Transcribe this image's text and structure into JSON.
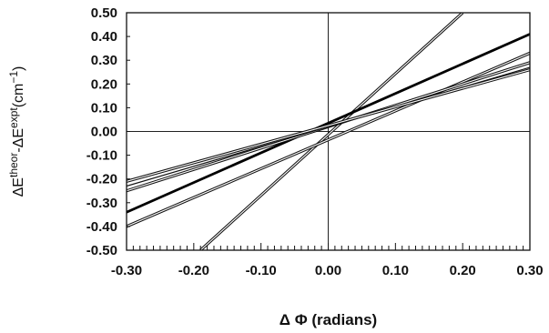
{
  "chart_data": {
    "type": "line",
    "xlabel": "Δ Φ (radians)",
    "ylabel": {
      "base1": "ΔE",
      "sup1": "theor",
      "mid": "-ΔE",
      "sup2": "expt",
      "unit": "(cm",
      "unit_sup": "−1",
      "close": ")"
    },
    "xlim": [
      -0.3,
      0.3
    ],
    "ylim": [
      -0.5,
      0.5
    ],
    "x_ticks": [
      -0.3,
      -0.2,
      -0.1,
      0.0,
      0.1,
      0.2,
      0.3
    ],
    "x_tick_labels": [
      "-0.30",
      "-0.20",
      "-0.10",
      "0.00",
      "0.10",
      "0.20",
      "0.30"
    ],
    "y_ticks": [
      0.5,
      0.4,
      0.3,
      0.2,
      0.1,
      0.0,
      -0.1,
      -0.2,
      -0.3,
      -0.4,
      -0.5
    ],
    "y_tick_labels": [
      "0.50",
      "0.40",
      "0.30",
      "0.20",
      "0.10",
      "0.00",
      "-0.10",
      "-0.20",
      "-0.30",
      "-0.40",
      "-0.50"
    ],
    "grid": false,
    "reference_lines": {
      "x": 0.0,
      "y": 0.0
    },
    "series": [
      {
        "x": [
          -0.19,
          0.2
        ],
        "y": [
          -0.5,
          0.5
        ],
        "style": "double"
      },
      {
        "x": [
          -0.3,
          0.3
        ],
        "y": [
          -0.34,
          0.41
        ],
        "style": "bold"
      },
      {
        "x": [
          -0.3,
          0.3
        ],
        "y": [
          -0.4,
          0.33
        ],
        "style": "double"
      },
      {
        "x": [
          -0.3,
          0.3
        ],
        "y": [
          -0.25,
          0.29
        ],
        "style": "double"
      },
      {
        "x": [
          -0.3,
          0.3
        ],
        "y": [
          -0.23,
          0.27
        ],
        "style": "single"
      },
      {
        "x": [
          -0.3,
          0.3
        ],
        "y": [
          -0.21,
          0.26
        ],
        "style": "double"
      }
    ]
  }
}
